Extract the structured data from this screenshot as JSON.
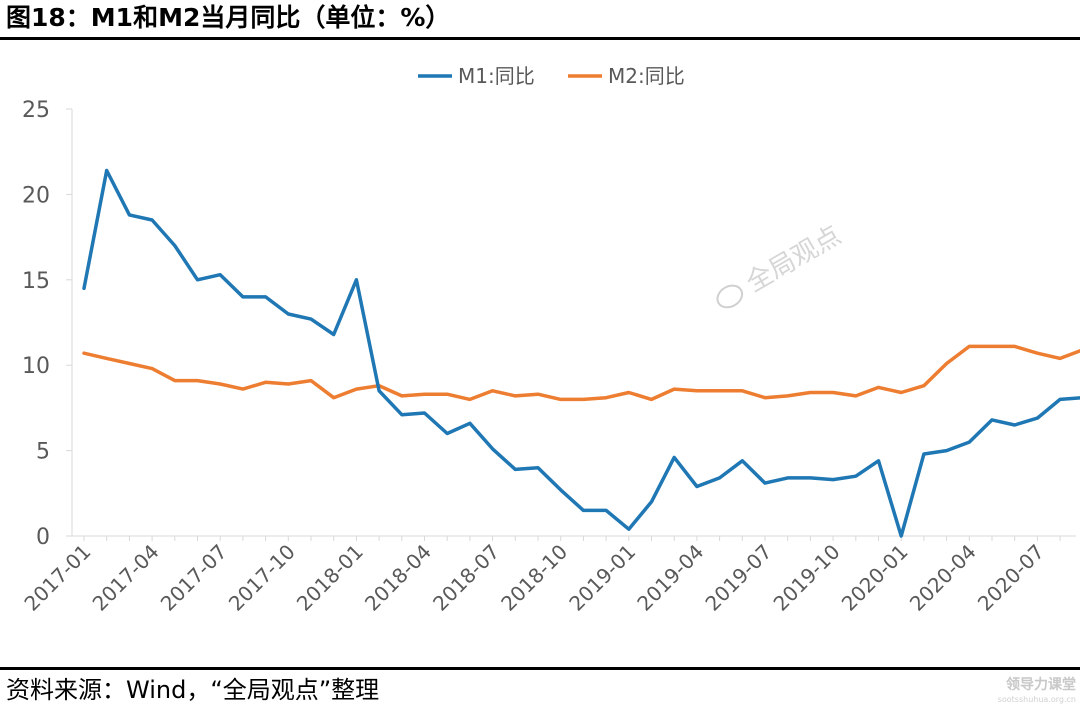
{
  "header": {
    "title": "图18：M1和M2当月同比（单位：%）"
  },
  "footer": {
    "source": "资料来源：Wind，“全局观点”整理"
  },
  "watermark": {
    "center_text": "全局观点",
    "corner_text": "领导力课堂",
    "corner_url": "sootsshuhua.org.cn"
  },
  "colors": {
    "m1": "#1f77b4",
    "m2": "#ed7d31",
    "axis": "#d9d9d9",
    "text": "#595959"
  },
  "chart_data": {
    "type": "line",
    "title": "",
    "xlabel": "",
    "ylabel": "",
    "ylim": [
      0,
      25
    ],
    "yticks": [
      0,
      5,
      10,
      15,
      20,
      25
    ],
    "grid": false,
    "legend": "top-center",
    "x_tick_labels": [
      "2017-01",
      "2017-04",
      "2017-07",
      "2017-10",
      "2018-01",
      "2018-04",
      "2018-07",
      "2018-10",
      "2019-01",
      "2019-04",
      "2019-07",
      "2019-10",
      "2020-01",
      "2020-04",
      "2020-07"
    ],
    "x": [
      "2017-01",
      "2017-02",
      "2017-03",
      "2017-04",
      "2017-05",
      "2017-06",
      "2017-07",
      "2017-08",
      "2017-09",
      "2017-10",
      "2017-11",
      "2017-12",
      "2018-01",
      "2018-02",
      "2018-03",
      "2018-04",
      "2018-05",
      "2018-06",
      "2018-07",
      "2018-08",
      "2018-09",
      "2018-10",
      "2018-11",
      "2018-12",
      "2019-01",
      "2019-02",
      "2019-03",
      "2019-04",
      "2019-05",
      "2019-06",
      "2019-07",
      "2019-08",
      "2019-09",
      "2019-10",
      "2019-11",
      "2019-12",
      "2020-01",
      "2020-02",
      "2020-03",
      "2020-04",
      "2020-05",
      "2020-06",
      "2020-07",
      "2020-08",
      "2020-09"
    ],
    "series": [
      {
        "name": "M1:同比",
        "values": [
          14.5,
          21.4,
          18.8,
          18.5,
          17.0,
          15.0,
          15.3,
          14.0,
          14.0,
          13.0,
          12.7,
          11.8,
          15.0,
          8.5,
          7.1,
          7.2,
          6.0,
          6.6,
          5.1,
          3.9,
          4.0,
          2.7,
          1.5,
          1.5,
          0.4,
          2.0,
          4.6,
          2.9,
          3.4,
          4.4,
          3.1,
          3.4,
          3.4,
          3.3,
          3.5,
          4.4,
          0.0,
          4.8,
          5.0,
          5.5,
          6.8,
          6.5,
          6.9,
          8.0,
          8.1
        ]
      },
      {
        "name": "M2:同比",
        "values": [
          10.7,
          10.4,
          10.1,
          9.8,
          9.1,
          9.1,
          8.9,
          8.6,
          9.0,
          8.9,
          9.1,
          8.1,
          8.6,
          8.8,
          8.2,
          8.3,
          8.3,
          8.0,
          8.5,
          8.2,
          8.3,
          8.0,
          8.0,
          8.1,
          8.4,
          8.0,
          8.6,
          8.5,
          8.5,
          8.5,
          8.1,
          8.2,
          8.4,
          8.4,
          8.2,
          8.7,
          8.4,
          8.8,
          10.1,
          11.1,
          11.1,
          11.1,
          10.7,
          10.4,
          10.9
        ]
      }
    ]
  }
}
